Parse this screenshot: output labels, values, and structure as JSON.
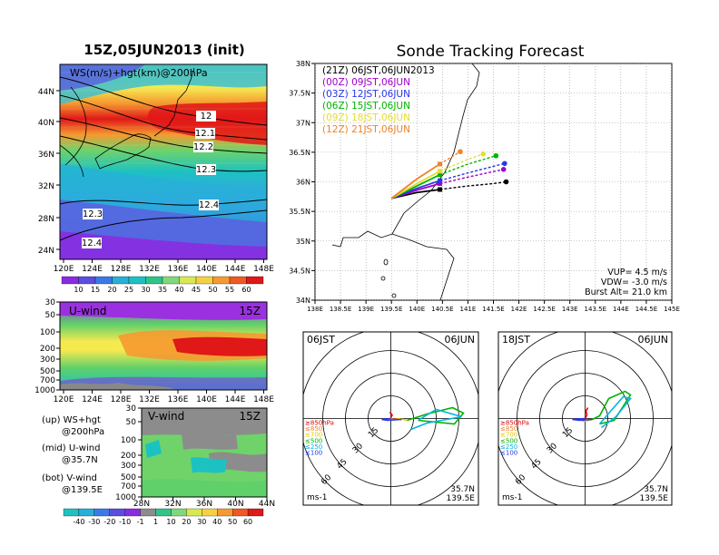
{
  "left": {
    "title": "15Z,05JUN2013 (init)",
    "top_map": {
      "label": "WS(m/s)+hgt(km)@200hPa",
      "lat_ticks": [
        "44N",
        "40N",
        "36N",
        "32N",
        "28N",
        "24N"
      ],
      "lon_ticks": [
        "120E",
        "124E",
        "128E",
        "132E",
        "136E",
        "140E",
        "144E",
        "148E"
      ],
      "contour_labels": [
        "12",
        "12.1",
        "12.2",
        "12.3",
        "12.4",
        "12.3",
        "12.4"
      ],
      "colorbar_ticks": [
        "10",
        "15",
        "20",
        "25",
        "30",
        "35",
        "40",
        "45",
        "50",
        "55",
        "60"
      ]
    },
    "uwind": {
      "label": "U-wind",
      "time": "15Z",
      "pressure_ticks": [
        "30",
        "50",
        "100",
        "200",
        "300",
        "500",
        "700",
        "1000"
      ],
      "lon_ticks": [
        "120E",
        "124E",
        "128E",
        "132E",
        "136E",
        "140E",
        "144E",
        "148E"
      ]
    },
    "vwind": {
      "label": "V-wind",
      "time": "15Z",
      "pressure_ticks": [
        "30",
        "50",
        "100",
        "200",
        "300",
        "500",
        "700",
        "1000"
      ],
      "lat_ticks": [
        "28N",
        "32N",
        "36N",
        "40N",
        "44N"
      ]
    },
    "notes": [
      {
        "tag": "(up)",
        "line1": "WS+hgt",
        "line2": "@200hPa"
      },
      {
        "tag": "(mid)",
        "line1": "U-wind",
        "line2": "@35.7N"
      },
      {
        "tag": "(bot)",
        "line1": "V-wind",
        "line2": "@139.5E"
      }
    ],
    "bottom_colorbar_ticks": [
      "-40",
      "-30",
      "-20",
      "-10",
      "-1",
      "1",
      "10",
      "20",
      "30",
      "40",
      "50",
      "60"
    ]
  },
  "chart_data": {
    "type": "line",
    "title": "Sonde Tracking Forecast",
    "xlim": [
      138,
      145
    ],
    "ylim": [
      34,
      38
    ],
    "x_ticks": [
      "138E",
      "138.5E",
      "139E",
      "139.5E",
      "140E",
      "140.5E",
      "141E",
      "141.5E",
      "142E",
      "142.5E",
      "143E",
      "143.5E",
      "144E",
      "144.5E",
      "145E"
    ],
    "y_ticks": [
      "38N",
      "37.5N",
      "37N",
      "36.5N",
      "36N",
      "35.5N",
      "35N",
      "34.5N",
      "34N"
    ],
    "launch": {
      "lon": 139.5,
      "lat": 35.72
    },
    "legend_position": "top-left",
    "series": [
      {
        "name": "(21Z) 06JST,06JUN2013",
        "color": "#000000",
        "x": [
          139.5,
          140.0,
          140.45,
          141.0,
          141.5,
          141.75
        ],
        "y": [
          35.72,
          35.82,
          35.87,
          35.93,
          35.97,
          36.0
        ],
        "solid_end_x": 140.45
      },
      {
        "name": "(00Z) 09JST,06JUN",
        "color": "#a000c8",
        "x": [
          139.5,
          140.0,
          140.45,
          141.0,
          141.7
        ],
        "y": [
          35.72,
          35.86,
          35.97,
          36.08,
          36.21
        ],
        "solid_end_x": 140.45
      },
      {
        "name": "(03Z) 12JST,06JUN",
        "color": "#2a36e8",
        "x": [
          139.5,
          140.0,
          140.45,
          141.0,
          141.72
        ],
        "y": [
          35.72,
          35.89,
          36.02,
          36.15,
          36.31
        ],
        "solid_end_x": 140.45
      },
      {
        "name": "(06Z) 15JST,06JUN",
        "color": "#00b400",
        "x": [
          139.5,
          140.0,
          140.45,
          141.0,
          141.55
        ],
        "y": [
          35.72,
          35.93,
          36.12,
          36.3,
          36.44
        ],
        "solid_end_x": 140.45
      },
      {
        "name": "(09Z) 18JST,06JUN",
        "color": "#e6dc32",
        "x": [
          139.5,
          140.0,
          140.45,
          141.0,
          141.3
        ],
        "y": [
          35.72,
          35.97,
          36.18,
          36.38,
          36.47
        ],
        "solid_end_x": 140.45
      },
      {
        "name": "(12Z) 21JST,06JUN",
        "color": "#f08228",
        "x": [
          139.5,
          140.0,
          140.45,
          140.85
        ],
        "y": [
          35.72,
          36.05,
          36.3,
          36.51
        ],
        "solid_end_x": 140.45
      }
    ],
    "annotations": [
      "VUP= 4.5 m/s",
      "VDW= -3.0 m/s",
      "Burst Alt= 21.0 km"
    ]
  },
  "hodographs": [
    {
      "time_label": "06JST",
      "date_label": "06JUN",
      "ring_labels": [
        "15",
        "30",
        "45",
        "60"
      ],
      "corner_br": [
        "35.7N",
        "139.5E"
      ],
      "units": "ms-1",
      "legend": [
        "≥850hPa",
        "≤850",
        "≤700",
        "≤500",
        "≤250",
        "≤100"
      ],
      "legend_colors": [
        "#e60000",
        "#f08228",
        "#e6c800",
        "#00b400",
        "#00b4dc",
        "#2a36e8"
      ]
    },
    {
      "time_label": "18JST",
      "date_label": "06JUN",
      "ring_labels": [
        "15",
        "30",
        "45",
        "60"
      ],
      "corner_br": [
        "35.7N",
        "139.5E"
      ],
      "units": "ms-1",
      "legend": [
        "≥850hPa",
        "≤850",
        "≤700",
        "≤500",
        "≤250",
        "≤100"
      ],
      "legend_colors": [
        "#e60000",
        "#f08228",
        "#e6c800",
        "#00b400",
        "#00b4dc",
        "#2a36e8"
      ]
    }
  ]
}
